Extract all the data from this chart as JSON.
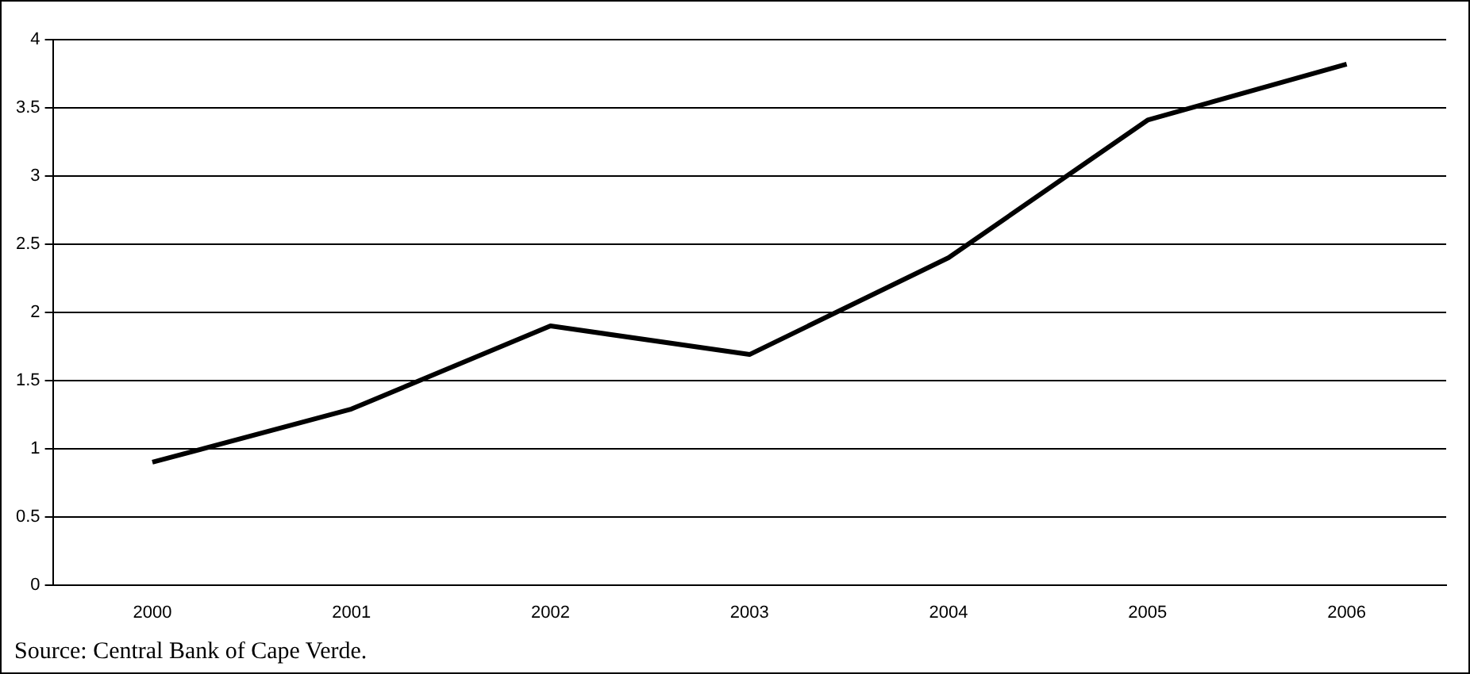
{
  "chart_data": {
    "type": "line",
    "categories": [
      "2000",
      "2001",
      "2002",
      "2003",
      "2004",
      "2005",
      "2006"
    ],
    "series": [
      {
        "color": "#000000",
        "values": [
          0.9,
          1.29,
          1.9,
          1.69,
          2.4,
          3.41,
          3.82
        ]
      }
    ],
    "ylim": [
      0,
      4
    ],
    "yticks": [
      0,
      0.5,
      1,
      1.5,
      2,
      2.5,
      3,
      3.5,
      4
    ],
    "grid": "y",
    "legend": false,
    "marker": "none",
    "line_style": "solid",
    "annotations": [
      "Source: Central Bank of Cape Verde."
    ]
  }
}
